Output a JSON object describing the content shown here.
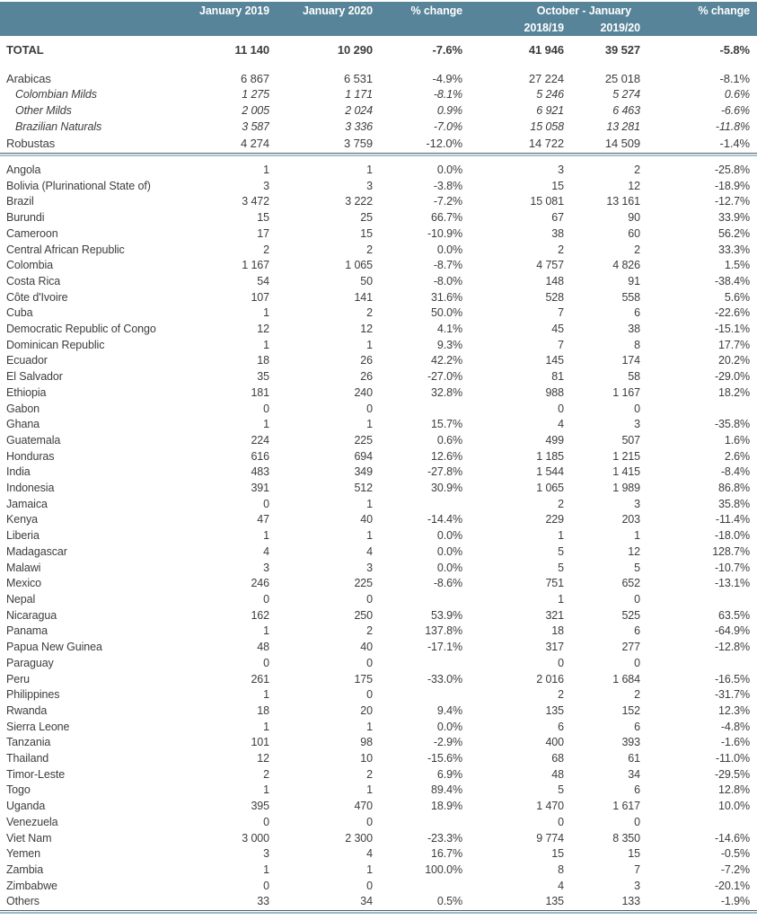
{
  "table": {
    "header": {
      "jan2019": "January 2019",
      "jan2020": "January 2020",
      "pct_change_1": "% change",
      "oct_jan": "October - January",
      "season_2018_19": "2018/19",
      "season_2019_20": "2019/20",
      "pct_change_2": "% change"
    },
    "total_row": {
      "label": "TOTAL",
      "style": "total",
      "jan2019": "11 140",
      "jan2020": "10 290",
      "chg1": "-7.6%",
      "oct1819": "41 946",
      "oct1920": "39 527",
      "chg2": "-5.8%"
    },
    "group_rows": [
      {
        "label": "Arabicas",
        "style": "group",
        "jan2019": "6 867",
        "jan2020": "6 531",
        "chg1": "-4.9%",
        "oct1819": "27 224",
        "oct1920": "25 018",
        "chg2": "-8.1%"
      },
      {
        "label": "Colombian Milds",
        "style": "sub",
        "jan2019": "1 275",
        "jan2020": "1 171",
        "chg1": "-8.1%",
        "oct1819": "5 246",
        "oct1920": "5 274",
        "chg2": "0.6%"
      },
      {
        "label": "Other Milds",
        "style": "sub",
        "jan2019": "2 005",
        "jan2020": "2 024",
        "chg1": "0.9%",
        "oct1819": "6 921",
        "oct1920": "6 463",
        "chg2": "-6.6%"
      },
      {
        "label": "Brazilian Naturals",
        "style": "sub",
        "jan2019": "3 587",
        "jan2020": "3 336",
        "chg1": "-7.0%",
        "oct1819": "15 058",
        "oct1920": "13 281",
        "chg2": "-11.8%"
      },
      {
        "label": "Robustas",
        "style": "group",
        "jan2019": "4 274",
        "jan2020": "3 759",
        "chg1": "-12.0%",
        "oct1819": "14 722",
        "oct1920": "14 509",
        "chg2": "-1.4%"
      }
    ],
    "country_rows": [
      {
        "label": "Angola",
        "jan2019": "1",
        "jan2020": "1",
        "chg1": "0.0%",
        "oct1819": "3",
        "oct1920": "2",
        "chg2": "-25.8%"
      },
      {
        "label": "Bolivia (Plurinational State of)",
        "jan2019": "3",
        "jan2020": "3",
        "chg1": "-3.8%",
        "oct1819": "15",
        "oct1920": "12",
        "chg2": "-18.9%"
      },
      {
        "label": "Brazil",
        "jan2019": "3 472",
        "jan2020": "3 222",
        "chg1": "-7.2%",
        "oct1819": "15 081",
        "oct1920": "13 161",
        "chg2": "-12.7%"
      },
      {
        "label": "Burundi",
        "jan2019": "15",
        "jan2020": "25",
        "chg1": "66.7%",
        "oct1819": "67",
        "oct1920": "90",
        "chg2": "33.9%"
      },
      {
        "label": "Cameroon",
        "jan2019": "17",
        "jan2020": "15",
        "chg1": "-10.9%",
        "oct1819": "38",
        "oct1920": "60",
        "chg2": "56.2%"
      },
      {
        "label": "Central African Republic",
        "jan2019": "2",
        "jan2020": "2",
        "chg1": "0.0%",
        "oct1819": "2",
        "oct1920": "2",
        "chg2": "33.3%"
      },
      {
        "label": "Colombia",
        "jan2019": "1 167",
        "jan2020": "1 065",
        "chg1": "-8.7%",
        "oct1819": "4 757",
        "oct1920": "4 826",
        "chg2": "1.5%"
      },
      {
        "label": "Costa Rica",
        "jan2019": "54",
        "jan2020": "50",
        "chg1": "-8.0%",
        "oct1819": "148",
        "oct1920": "91",
        "chg2": "-38.4%"
      },
      {
        "label": "Côte d'Ivoire",
        "jan2019": "107",
        "jan2020": "141",
        "chg1": "31.6%",
        "oct1819": "528",
        "oct1920": "558",
        "chg2": "5.6%"
      },
      {
        "label": "Cuba",
        "jan2019": "1",
        "jan2020": "2",
        "chg1": "50.0%",
        "oct1819": "7",
        "oct1920": "6",
        "chg2": "-22.6%"
      },
      {
        "label": "Democratic Republic of Congo",
        "jan2019": "12",
        "jan2020": "12",
        "chg1": "4.1%",
        "oct1819": "45",
        "oct1920": "38",
        "chg2": "-15.1%"
      },
      {
        "label": "Dominican Republic",
        "jan2019": "1",
        "jan2020": "1",
        "chg1": "9.3%",
        "oct1819": "7",
        "oct1920": "8",
        "chg2": "17.7%"
      },
      {
        "label": "Ecuador",
        "jan2019": "18",
        "jan2020": "26",
        "chg1": "42.2%",
        "oct1819": "145",
        "oct1920": "174",
        "chg2": "20.2%"
      },
      {
        "label": "El Salvador",
        "jan2019": "35",
        "jan2020": "26",
        "chg1": "-27.0%",
        "oct1819": "81",
        "oct1920": "58",
        "chg2": "-29.0%"
      },
      {
        "label": "Ethiopia",
        "jan2019": "181",
        "jan2020": "240",
        "chg1": "32.8%",
        "oct1819": "988",
        "oct1920": "1 167",
        "chg2": "18.2%"
      },
      {
        "label": "Gabon",
        "jan2019": "0",
        "jan2020": "0",
        "chg1": "",
        "oct1819": "0",
        "oct1920": "0",
        "chg2": ""
      },
      {
        "label": "Ghana",
        "jan2019": "1",
        "jan2020": "1",
        "chg1": "15.7%",
        "oct1819": "4",
        "oct1920": "3",
        "chg2": "-35.8%"
      },
      {
        "label": "Guatemala",
        "jan2019": "224",
        "jan2020": "225",
        "chg1": "0.6%",
        "oct1819": "499",
        "oct1920": "507",
        "chg2": "1.6%"
      },
      {
        "label": "Honduras",
        "jan2019": "616",
        "jan2020": "694",
        "chg1": "12.6%",
        "oct1819": "1 185",
        "oct1920": "1 215",
        "chg2": "2.6%"
      },
      {
        "label": "India",
        "jan2019": "483",
        "jan2020": "349",
        "chg1": "-27.8%",
        "oct1819": "1 544",
        "oct1920": "1 415",
        "chg2": "-8.4%"
      },
      {
        "label": "Indonesia",
        "jan2019": "391",
        "jan2020": "512",
        "chg1": "30.9%",
        "oct1819": "1 065",
        "oct1920": "1 989",
        "chg2": "86.8%"
      },
      {
        "label": "Jamaica",
        "jan2019": "0",
        "jan2020": "1",
        "chg1": "",
        "oct1819": "2",
        "oct1920": "3",
        "chg2": "35.8%"
      },
      {
        "label": "Kenya",
        "jan2019": "47",
        "jan2020": "40",
        "chg1": "-14.4%",
        "oct1819": "229",
        "oct1920": "203",
        "chg2": "-11.4%"
      },
      {
        "label": "Liberia",
        "jan2019": "1",
        "jan2020": "1",
        "chg1": "0.0%",
        "oct1819": "1",
        "oct1920": "1",
        "chg2": "-18.0%"
      },
      {
        "label": "Madagascar",
        "jan2019": "4",
        "jan2020": "4",
        "chg1": "0.0%",
        "oct1819": "5",
        "oct1920": "12",
        "chg2": "128.7%"
      },
      {
        "label": "Malawi",
        "jan2019": "3",
        "jan2020": "3",
        "chg1": "0.0%",
        "oct1819": "5",
        "oct1920": "5",
        "chg2": "-10.7%"
      },
      {
        "label": "Mexico",
        "jan2019": "246",
        "jan2020": "225",
        "chg1": "-8.6%",
        "oct1819": "751",
        "oct1920": "652",
        "chg2": "-13.1%"
      },
      {
        "label": "Nepal",
        "jan2019": "0",
        "jan2020": "0",
        "chg1": "",
        "oct1819": "1",
        "oct1920": "0",
        "chg2": ""
      },
      {
        "label": "Nicaragua",
        "jan2019": "162",
        "jan2020": "250",
        "chg1": "53.9%",
        "oct1819": "321",
        "oct1920": "525",
        "chg2": "63.5%"
      },
      {
        "label": "Panama",
        "jan2019": "1",
        "jan2020": "2",
        "chg1": "137.8%",
        "oct1819": "18",
        "oct1920": "6",
        "chg2": "-64.9%"
      },
      {
        "label": "Papua New Guinea",
        "jan2019": "48",
        "jan2020": "40",
        "chg1": "-17.1%",
        "oct1819": "317",
        "oct1920": "277",
        "chg2": "-12.8%"
      },
      {
        "label": "Paraguay",
        "jan2019": "0",
        "jan2020": "0",
        "chg1": "",
        "oct1819": "0",
        "oct1920": "0",
        "chg2": ""
      },
      {
        "label": "Peru",
        "jan2019": "261",
        "jan2020": "175",
        "chg1": "-33.0%",
        "oct1819": "2 016",
        "oct1920": "1 684",
        "chg2": "-16.5%"
      },
      {
        "label": "Philippines",
        "jan2019": "1",
        "jan2020": "0",
        "chg1": "",
        "oct1819": "2",
        "oct1920": "2",
        "chg2": "-31.7%"
      },
      {
        "label": "Rwanda",
        "jan2019": "18",
        "jan2020": "20",
        "chg1": "9.4%",
        "oct1819": "135",
        "oct1920": "152",
        "chg2": "12.3%"
      },
      {
        "label": "Sierra Leone",
        "jan2019": "1",
        "jan2020": "1",
        "chg1": "0.0%",
        "oct1819": "6",
        "oct1920": "6",
        "chg2": "-4.8%"
      },
      {
        "label": "Tanzania",
        "jan2019": "101",
        "jan2020": "98",
        "chg1": "-2.9%",
        "oct1819": "400",
        "oct1920": "393",
        "chg2": "-1.6%"
      },
      {
        "label": "Thailand",
        "jan2019": "12",
        "jan2020": "10",
        "chg1": "-15.6%",
        "oct1819": "68",
        "oct1920": "61",
        "chg2": "-11.0%"
      },
      {
        "label": "Timor-Leste",
        "jan2019": "2",
        "jan2020": "2",
        "chg1": "6.9%",
        "oct1819": "48",
        "oct1920": "34",
        "chg2": "-29.5%"
      },
      {
        "label": "Togo",
        "jan2019": "1",
        "jan2020": "1",
        "chg1": "89.4%",
        "oct1819": "5",
        "oct1920": "6",
        "chg2": "12.8%"
      },
      {
        "label": "Uganda",
        "jan2019": "395",
        "jan2020": "470",
        "chg1": "18.9%",
        "oct1819": "1 470",
        "oct1920": "1 617",
        "chg2": "10.0%"
      },
      {
        "label": "Venezuela",
        "jan2019": "0",
        "jan2020": "0",
        "chg1": "",
        "oct1819": "0",
        "oct1920": "0",
        "chg2": ""
      },
      {
        "label": "Viet Nam",
        "jan2019": "3 000",
        "jan2020": "2 300",
        "chg1": "-23.3%",
        "oct1819": "9 774",
        "oct1920": "8 350",
        "chg2": "-14.6%"
      },
      {
        "label": "Yemen",
        "jan2019": "3",
        "jan2020": "4",
        "chg1": "16.7%",
        "oct1819": "15",
        "oct1920": "15",
        "chg2": "-0.5%"
      },
      {
        "label": "Zambia",
        "jan2019": "1",
        "jan2020": "1",
        "chg1": "100.0%",
        "oct1819": "8",
        "oct1920": "7",
        "chg2": "-7.2%"
      },
      {
        "label": "Zimbabwe",
        "jan2019": "0",
        "jan2020": "0",
        "chg1": "",
        "oct1819": "4",
        "oct1920": "3",
        "chg2": "-20.1%"
      },
      {
        "label": "Others",
        "jan2019": "33",
        "jan2020": "34",
        "chg1": "0.5%",
        "oct1819": "135",
        "oct1920": "133",
        "chg2": "-1.9%"
      }
    ]
  },
  "colors": {
    "header_bg": "#578499",
    "header_text": "#ffffff",
    "body_text": "#3d3d3d",
    "rule_dark": "#51626c",
    "rule_light": "#a6c1cd"
  }
}
